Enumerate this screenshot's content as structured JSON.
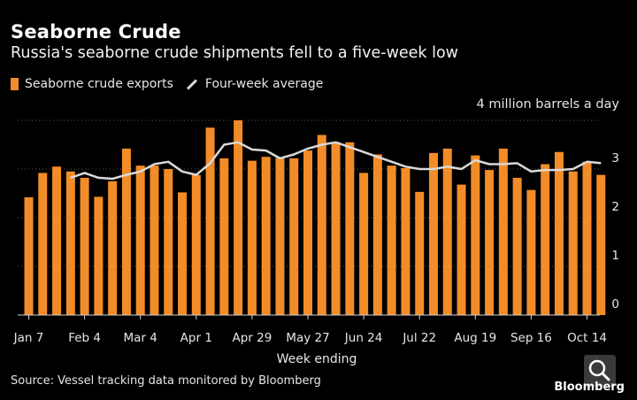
{
  "chart_data": {
    "type": "bar",
    "title": "Seaborne Crude",
    "subtitle": "Russia's seaborne crude shipments fell to a five-week low",
    "legend": [
      "Seaborne crude exports",
      "Four-week average"
    ],
    "unit_label": "4 million barrels a day",
    "xlabel": "Week ending",
    "x_ticks": [
      "Jan 7",
      "Feb 4",
      "Mar 4",
      "Apr 1",
      "Apr 29",
      "May 27",
      "Jun 24",
      "Jul 22",
      "Aug 19",
      "Sep 16",
      "Oct 14"
    ],
    "y_ticks": [
      "0",
      "1",
      "2",
      "3"
    ],
    "ylim": [
      0,
      4
    ],
    "grid": true,
    "colors": {
      "bars": "#f28c28",
      "line": "#d9d9d9",
      "background": "#000000"
    },
    "series": [
      {
        "name": "Seaborne crude exports",
        "values": [
          2.42,
          2.92,
          3.05,
          2.95,
          2.82,
          2.43,
          2.75,
          3.42,
          3.07,
          3.07,
          3.0,
          2.52,
          2.88,
          3.85,
          3.22,
          4.0,
          3.17,
          3.25,
          3.23,
          3.22,
          3.38,
          3.7,
          3.55,
          3.55,
          2.92,
          3.3,
          3.07,
          3.02,
          2.53,
          3.33,
          3.42,
          2.68,
          3.28,
          2.98,
          3.42,
          2.82,
          2.57,
          3.1,
          3.35,
          2.95,
          3.15,
          2.88
        ]
      },
      {
        "name": "Four-week average",
        "start_index": 3,
        "values": [
          2.82,
          2.92,
          2.82,
          2.8,
          2.88,
          2.95,
          3.1,
          3.15,
          2.95,
          2.88,
          3.12,
          3.5,
          3.55,
          3.4,
          3.38,
          3.22,
          3.3,
          3.42,
          3.5,
          3.55,
          3.45,
          3.35,
          3.25,
          3.15,
          3.05,
          3.0,
          3.0,
          3.05,
          3.0,
          3.18,
          3.1,
          3.1,
          3.12,
          2.95,
          2.98,
          2.98,
          3.0,
          3.15,
          3.12
        ]
      }
    ]
  },
  "footer": {
    "source": "Source: Vessel tracking data monitored by Bloomberg",
    "brand": "Bloomberg"
  },
  "icons": {
    "search": "magnifier-icon"
  }
}
